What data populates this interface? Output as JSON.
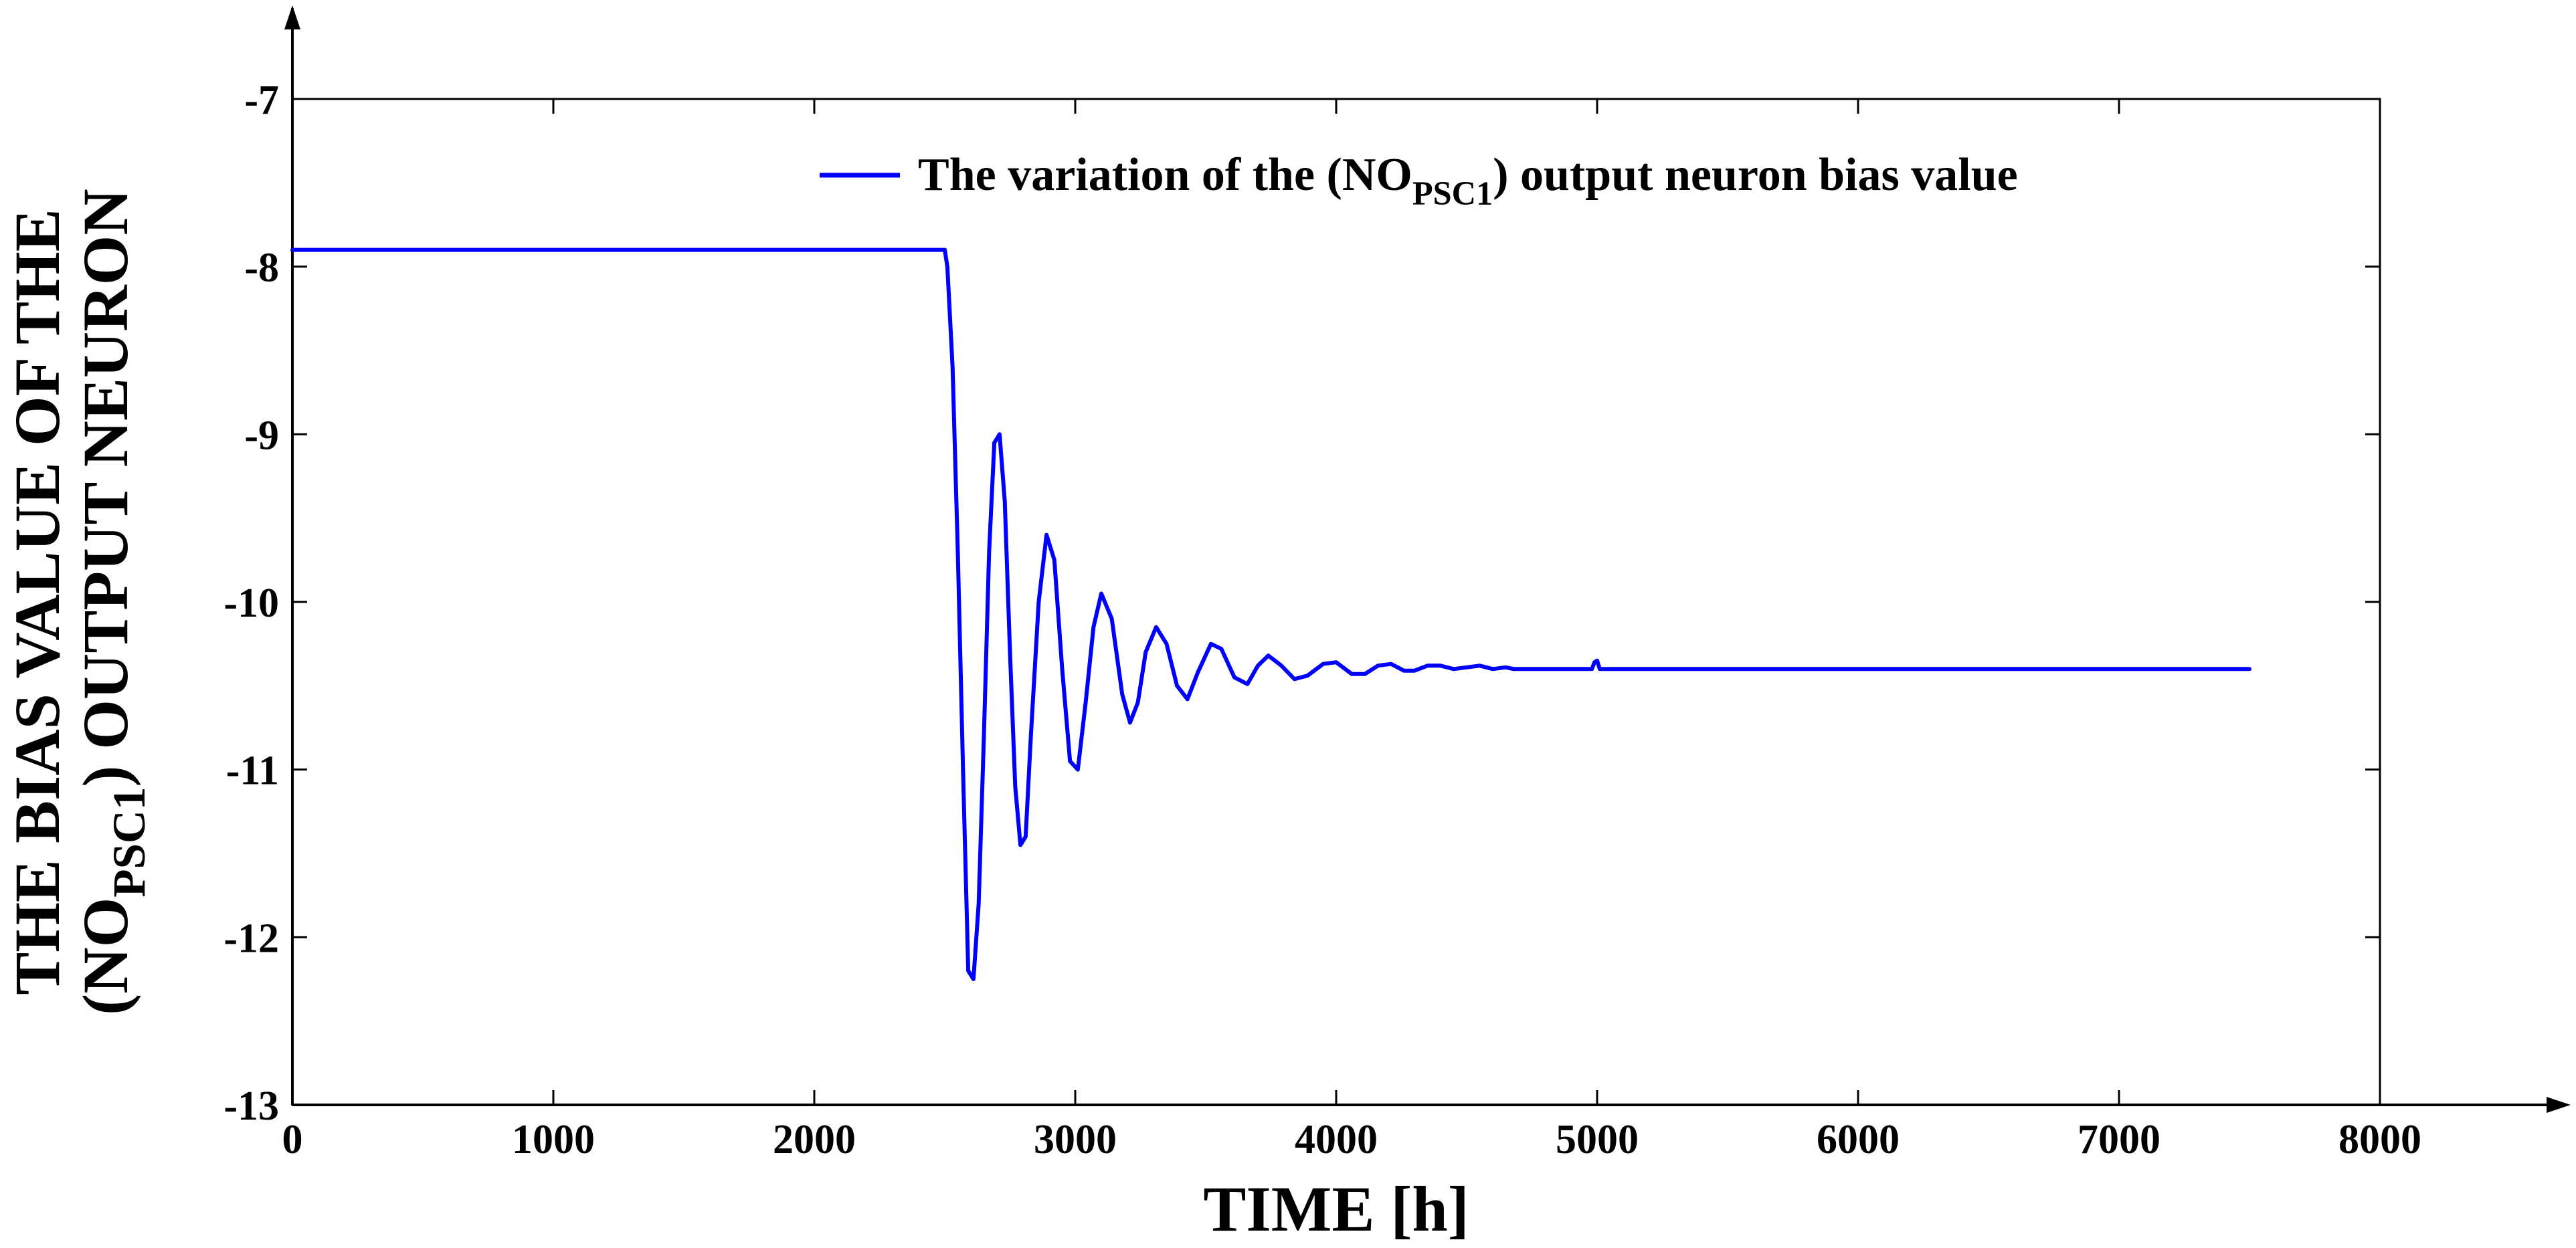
{
  "chart_data": {
    "type": "line",
    "title": "",
    "xlabel": "TIME [h]",
    "ylabel_line1": "THE BIAS VALUE OF THE",
    "ylabel_line2_pre": "(NO",
    "ylabel_line2_sub": "PSC1",
    "ylabel_line2_post": ") OUTPUT NEURON",
    "xlim": [
      0,
      8000
    ],
    "ylim": [
      -13,
      -7
    ],
    "x_ticks": [
      0,
      1000,
      2000,
      3000,
      4000,
      5000,
      6000,
      7000,
      8000
    ],
    "x_tick_labels": [
      "0",
      "1000",
      "2000",
      "3000",
      "4000",
      "5000",
      "6000",
      "7000",
      "8000"
    ],
    "y_ticks": [
      -7,
      -8,
      -9,
      -10,
      -11,
      -12,
      -13
    ],
    "y_tick_labels": [
      "-7",
      "-8",
      "-9",
      "-10",
      "-11",
      "-12",
      "-13"
    ],
    "grid": false,
    "legend_position": "top-right",
    "series": [
      {
        "name_pre": "The variation of the (NO",
        "name_sub": "PSC1",
        "name_post": ") output neuron bias value",
        "color": "#0000ff",
        "x": [
          0,
          2500,
          2510,
          2530,
          2550,
          2570,
          2590,
          2610,
          2630,
          2650,
          2670,
          2690,
          2710,
          2730,
          2750,
          2770,
          2790,
          2810,
          2830,
          2860,
          2890,
          2920,
          2950,
          2980,
          3010,
          3040,
          3070,
          3100,
          3140,
          3180,
          3210,
          3240,
          3270,
          3310,
          3350,
          3390,
          3430,
          3470,
          3520,
          3560,
          3610,
          3660,
          3700,
          3740,
          3790,
          3840,
          3890,
          3950,
          4000,
          4060,
          4110,
          4160,
          4210,
          4260,
          4300,
          4350,
          4400,
          4450,
          4500,
          4550,
          4600,
          4650,
          4680,
          4700,
          4980,
          4990,
          5000,
          5010,
          7500
        ],
        "y": [
          -7.9,
          -7.9,
          -8.0,
          -8.6,
          -9.7,
          -11.0,
          -12.2,
          -12.25,
          -11.8,
          -10.8,
          -9.7,
          -9.05,
          -9.0,
          -9.4,
          -10.3,
          -11.1,
          -11.45,
          -11.4,
          -10.8,
          -10.0,
          -9.6,
          -9.75,
          -10.4,
          -10.95,
          -11.0,
          -10.6,
          -10.15,
          -9.95,
          -10.1,
          -10.55,
          -10.72,
          -10.6,
          -10.3,
          -10.15,
          -10.25,
          -10.5,
          -10.58,
          -10.42,
          -10.25,
          -10.28,
          -10.45,
          -10.49,
          -10.38,
          -10.32,
          -10.38,
          -10.46,
          -10.44,
          -10.37,
          -10.36,
          -10.43,
          -10.43,
          -10.38,
          -10.37,
          -10.41,
          -10.41,
          -10.38,
          -10.38,
          -10.4,
          -10.39,
          -10.38,
          -10.4,
          -10.39,
          -10.4,
          -10.4,
          -10.4,
          -10.36,
          -10.35,
          -10.4,
          -10.4
        ]
      }
    ]
  }
}
